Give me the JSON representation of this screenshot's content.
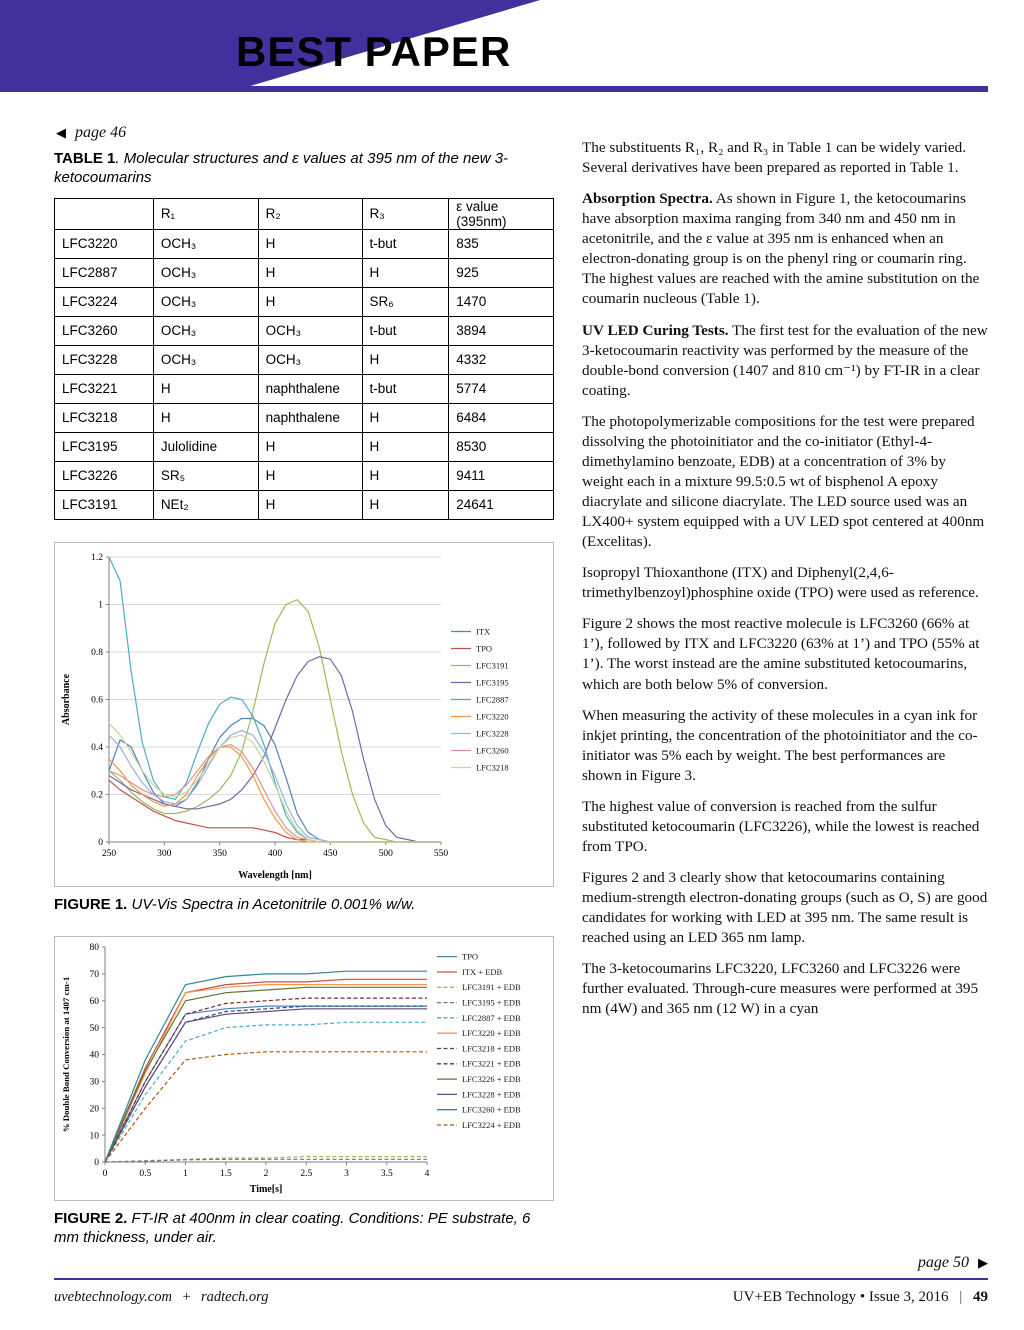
{
  "page": {
    "header": {
      "title": "BEST PAPER"
    },
    "nav": {
      "prev": "page 46",
      "prev_icon": "◀",
      "next": "page 50",
      "next_icon": "▶"
    },
    "footer": {
      "site1": "uvebtechnology.com",
      "site_sep": "+",
      "site2": "radtech.org",
      "journal": "UV+EB Technology • Issue 3, 2016",
      "divider": "|",
      "page_number": "49"
    },
    "colors": {
      "accent_purple": "#43309c"
    }
  },
  "table1": {
    "caption_bold": "TABLE 1",
    "caption_italic": ". Molecular structures and ε values at 395 nm of the new 3-ketocoumarins",
    "headers": [
      "",
      "R₁",
      "R₂",
      "R₃",
      "ε value (395nm)"
    ],
    "rows": [
      [
        "LFC3220",
        "OCH₃",
        "H",
        "t-but",
        "835"
      ],
      [
        "LFC2887",
        "OCH₃",
        "H",
        "H",
        "925"
      ],
      [
        "LFC3224",
        "OCH₃",
        "H",
        "SR₆",
        "1470"
      ],
      [
        "LFC3260",
        "OCH₃",
        "OCH₃",
        "t-but",
        "3894"
      ],
      [
        "LFC3228",
        "OCH₃",
        "OCH₃",
        "H",
        "4332"
      ],
      [
        "LFC3221",
        "H",
        "naphthalene",
        "t-but",
        "5774"
      ],
      [
        "LFC3218",
        "H",
        "naphthalene",
        "H",
        "6484"
      ],
      [
        "LFC3195",
        "Julolidine",
        "H",
        "H",
        "8530"
      ],
      [
        "LFC3226",
        "SR₅",
        "H",
        "H",
        "9411"
      ],
      [
        "LFC3191",
        "NEt₂",
        "H",
        "H",
        "24641"
      ]
    ]
  },
  "figure1": {
    "caption_bold": "FIGURE 1.",
    "caption_italic": " UV-Vis Spectra in Acetonitrile 0.001% w/w."
  },
  "figure2": {
    "caption_bold": "FIGURE 2.",
    "caption_italic": " FT-IR at 400nm in clear coating. Conditions: PE substrate, 6 mm thickness, under air."
  },
  "article": {
    "paragraphs": [
      {
        "text": "The substituents R₁, R₂ and R₃ in Table 1 can be widely varied. Several derivatives have been prepared as reported in Table 1."
      },
      {
        "lead": "Absorption Spectra.",
        "text": " As shown in Figure 1, the ketocoumarins have absorption maxima ranging from 340 nm and 450 nm in acetonitrile, and the ε value at 395 nm is enhanced when an electron-donating group is on the phenyl ring or coumarin ring. The highest values are reached with the amine substitution on the coumarin nucleous (Table 1)."
      },
      {
        "lead": "UV LED Curing Tests.",
        "text": " The first test for the evaluation of the new 3-ketocoumarin reactivity was performed by the measure of the double-bond conversion (1407 and 810 cm⁻¹) by FT-IR in a clear coating."
      },
      {
        "text": "The photopolymerizable compositions for the test were prepared dissolving the photoinitiator and the co-initiator (Ethyl-4-dimethylamino benzoate, EDB) at a concentration of 3% by weight each in a mixture 99.5:0.5 wt of bisphenol A epoxy diacrylate and silicone diacrylate. The LED source used was an LX400+ system equipped with a UV LED spot centered at 400nm (Excelitas)."
      },
      {
        "text": "Isopropyl Thioxanthone (ITX) and Diphenyl(2,4,6-trimethylbenzoyl)phosphine oxide (TPO) were used as reference."
      },
      {
        "text": "Figure 2 shows the most reactive molecule is LFC3260 (66% at 1’), followed by ITX and LFC3220 (63% at 1’) and TPO (55% at 1’). The worst instead are the amine substituted ketocoumarins, which are both below 5% of conversion."
      },
      {
        "text": "When measuring the activity of these molecules in a cyan ink for inkjet printing, the concentration of the photoinitiator and the co-initiator was 5% each by weight. The best performances are shown in Figure 3."
      },
      {
        "text": "The highest value of conversion is reached from the sulfur substituted ketocoumarin (LFC3226), while the lowest is reached from TPO."
      },
      {
        "text": "Figures 2 and 3 clearly show that ketocoumarins containing medium-strength electron-donating groups (such as O, S) are good candidates for working with LED at 395 nm. The same result is reached using an LED 365 nm lamp."
      },
      {
        "text": "The 3-ketocoumarins LFC3220, LFC3260 and LFC3226 were further evaluated. Through-cure measures were performed at 395 nm (4W) and 365 nm (12 W) in a cyan"
      }
    ]
  },
  "chart_data": [
    {
      "type": "line",
      "title": "UV-Vis Spectra in Acetonitrile 0.001% w/w",
      "xlabel": "Wavelength [nm]",
      "ylabel": "Absorbance",
      "xlim": [
        250,
        550
      ],
      "ylim": [
        0,
        1.2
      ],
      "xticks": [
        250,
        300,
        350,
        400,
        450,
        500,
        550
      ],
      "yticks": [
        0,
        0.2,
        0.4,
        0.6,
        0.8,
        1,
        1.2
      ],
      "grid": true,
      "legend_position": "right",
      "x": [
        250,
        260,
        270,
        280,
        290,
        300,
        310,
        320,
        330,
        340,
        350,
        360,
        370,
        380,
        390,
        400,
        410,
        420,
        430,
        440,
        450,
        460,
        470,
        480,
        490,
        500,
        510,
        520,
        530,
        540,
        550
      ],
      "series": [
        {
          "name": "ITX",
          "color": "#4F81BD",
          "dash": false,
          "values": [
            0.3,
            0.43,
            0.4,
            0.3,
            0.21,
            0.16,
            0.15,
            0.18,
            0.25,
            0.35,
            0.44,
            0.49,
            0.52,
            0.52,
            0.49,
            0.41,
            0.27,
            0.12,
            0.04,
            0.01,
            0,
            0,
            0,
            0,
            0,
            0,
            0,
            0,
            0,
            0,
            0
          ]
        },
        {
          "name": "TPO",
          "color": "#C0504D",
          "dash": false,
          "values": [
            0.26,
            0.22,
            0.19,
            0.16,
            0.13,
            0.11,
            0.09,
            0.08,
            0.07,
            0.06,
            0.06,
            0.06,
            0.06,
            0.06,
            0.05,
            0.04,
            0.02,
            0.01,
            0.01,
            0,
            0,
            0,
            0,
            0,
            0,
            0,
            0,
            0,
            0,
            0,
            0
          ]
        },
        {
          "name": "LFC3191",
          "color": "#9BBB59",
          "dash": false,
          "values": [
            0.3,
            0.26,
            0.21,
            0.17,
            0.14,
            0.12,
            0.12,
            0.13,
            0.15,
            0.18,
            0.22,
            0.28,
            0.38,
            0.55,
            0.75,
            0.92,
            1.0,
            1.02,
            0.97,
            0.82,
            0.6,
            0.38,
            0.2,
            0.08,
            0.02,
            0.01,
            0,
            0,
            0,
            0,
            0
          ]
        },
        {
          "name": "LFC3195",
          "color": "#8064A2",
          "dash": false,
          "values": [
            0.28,
            0.25,
            0.22,
            0.2,
            0.18,
            0.16,
            0.15,
            0.14,
            0.14,
            0.15,
            0.16,
            0.18,
            0.22,
            0.28,
            0.36,
            0.48,
            0.6,
            0.7,
            0.76,
            0.78,
            0.77,
            0.7,
            0.55,
            0.35,
            0.18,
            0.07,
            0.02,
            0.01,
            0,
            0,
            0
          ]
        },
        {
          "name": "LFC2887",
          "color": "#4BACC6",
          "dash": false,
          "values": [
            1.2,
            1.1,
            0.72,
            0.42,
            0.26,
            0.19,
            0.18,
            0.25,
            0.38,
            0.5,
            0.58,
            0.61,
            0.6,
            0.53,
            0.41,
            0.25,
            0.11,
            0.04,
            0.01,
            0,
            0,
            0,
            0,
            0,
            0,
            0,
            0,
            0,
            0,
            0,
            0
          ]
        },
        {
          "name": "LFC3220",
          "color": "#F79646",
          "dash": false,
          "values": [
            0.35,
            0.3,
            0.24,
            0.2,
            0.17,
            0.15,
            0.16,
            0.2,
            0.28,
            0.35,
            0.4,
            0.4,
            0.36,
            0.28,
            0.18,
            0.1,
            0.04,
            0.01,
            0,
            0,
            0,
            0,
            0,
            0,
            0,
            0,
            0,
            0,
            0,
            0,
            0
          ]
        },
        {
          "name": "LFC3228",
          "color": "#95B3D7",
          "dash": false,
          "values": [
            0.45,
            0.4,
            0.32,
            0.25,
            0.2,
            0.17,
            0.16,
            0.18,
            0.24,
            0.32,
            0.4,
            0.45,
            0.47,
            0.45,
            0.38,
            0.28,
            0.16,
            0.07,
            0.02,
            0.01,
            0,
            0,
            0,
            0,
            0,
            0,
            0,
            0,
            0,
            0,
            0
          ]
        },
        {
          "name": "LFC3260",
          "color": "#D99694",
          "dash": false,
          "values": [
            0.3,
            0.28,
            0.25,
            0.22,
            0.2,
            0.19,
            0.2,
            0.24,
            0.3,
            0.36,
            0.4,
            0.41,
            0.38,
            0.31,
            0.22,
            0.13,
            0.06,
            0.02,
            0.01,
            0,
            0,
            0,
            0,
            0,
            0,
            0,
            0,
            0,
            0,
            0,
            0
          ]
        },
        {
          "name": "LFC3218",
          "color": "#C3D69B",
          "dash": false,
          "values": [
            0.5,
            0.45,
            0.38,
            0.3,
            0.24,
            0.2,
            0.19,
            0.21,
            0.26,
            0.33,
            0.4,
            0.44,
            0.45,
            0.42,
            0.34,
            0.24,
            0.13,
            0.05,
            0.01,
            0,
            0,
            0,
            0,
            0,
            0,
            0,
            0,
            0,
            0,
            0,
            0
          ]
        }
      ]
    },
    {
      "type": "line",
      "title": "FT-IR at 400nm in clear coating",
      "xlabel": "Time[s]",
      "ylabel": "% Double Bond Conversion at 1407 cm-1",
      "xlim": [
        0,
        4
      ],
      "ylim": [
        0,
        80
      ],
      "xticks": [
        0,
        0.5,
        1,
        1.5,
        2,
        2.5,
        3,
        3.5,
        4
      ],
      "yticks": [
        0,
        10,
        20,
        30,
        40,
        50,
        60,
        70,
        80
      ],
      "grid": false,
      "legend_position": "right",
      "x": [
        0,
        0.5,
        1,
        1.5,
        2,
        2.5,
        3,
        3.5,
        4
      ],
      "series": [
        {
          "name": "TPO",
          "color": "#4F81BD",
          "dash": false,
          "values": [
            0,
            30,
            55,
            57,
            58,
            58,
            58,
            58,
            58
          ]
        },
        {
          "name": "ITX + EDB",
          "color": "#C0504D",
          "dash": false,
          "values": [
            0,
            35,
            63,
            66,
            67,
            67,
            68,
            68,
            68
          ]
        },
        {
          "name": "LFC3191 + EDB",
          "color": "#9BBB59",
          "dash": true,
          "values": [
            0,
            0.5,
            1,
            1.5,
            1.5,
            2,
            2,
            2,
            2
          ]
        },
        {
          "name": "LFC3195 + EDB",
          "color": "#8064A2",
          "dash": true,
          "values": [
            0,
            0.3,
            0.8,
            1,
            1,
            1,
            1,
            1,
            1
          ]
        },
        {
          "name": "LFC2887 + EDB",
          "color": "#4BACC6",
          "dash": true,
          "values": [
            0,
            25,
            45,
            50,
            51,
            51,
            52,
            52,
            52
          ]
        },
        {
          "name": "LFC3220 + EDB",
          "color": "#F79646",
          "dash": false,
          "values": [
            0,
            33,
            63,
            65,
            66,
            66,
            66,
            66,
            66
          ]
        },
        {
          "name": "LFC3218 + EDB",
          "color": "#2C4D75",
          "dash": true,
          "values": [
            0,
            28,
            52,
            56,
            57,
            58,
            58,
            58,
            58
          ]
        },
        {
          "name": "LFC3221 + EDB",
          "color": "#772C2A",
          "dash": true,
          "values": [
            0,
            30,
            55,
            59,
            60,
            61,
            61,
            61,
            61
          ]
        },
        {
          "name": "LFC3226 + EDB",
          "color": "#5F7530",
          "dash": false,
          "values": [
            0,
            34,
            60,
            63,
            64,
            65,
            65,
            65,
            65
          ]
        },
        {
          "name": "LFC3228 + EDB",
          "color": "#604A7B",
          "dash": false,
          "values": [
            0,
            28,
            52,
            55,
            56,
            57,
            57,
            57,
            57
          ]
        },
        {
          "name": "LFC3260 + EDB",
          "color": "#31859C",
          "dash": false,
          "values": [
            0,
            38,
            66,
            69,
            70,
            70,
            71,
            71,
            71
          ]
        },
        {
          "name": "LFC3224 + EDB",
          "color": "#B65708",
          "dash": true,
          "values": [
            0,
            20,
            38,
            40,
            41,
            41,
            41,
            41,
            41
          ]
        }
      ]
    }
  ]
}
